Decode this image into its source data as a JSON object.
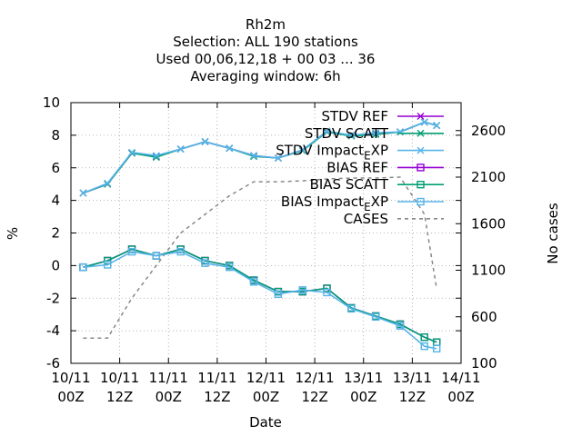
{
  "chart_data": {
    "type": "line",
    "title_lines": [
      "Rh2m",
      "Selection: ALL    190 stations",
      "Used  00,06,12,18 + 00 03 ... 36",
      "Averaging window:  6h"
    ],
    "xlabel": "Date",
    "ylabel": "%",
    "y2label": "No cases",
    "ylim": [
      -6,
      10
    ],
    "yticks": [
      "-6",
      "-4",
      "-2",
      "0",
      "2",
      "4",
      "6",
      "8",
      "10"
    ],
    "y2lim": [
      100,
      2900
    ],
    "y2ticks": [
      "100",
      "600",
      "1100",
      "1600",
      "2100",
      "2600"
    ],
    "xlim": [
      0,
      96
    ],
    "xticks": [
      {
        "l1": "10/11",
        "l2": "00Z"
      },
      {
        "l1": "10/11",
        "l2": "12Z"
      },
      {
        "l1": "11/11",
        "l2": "00Z"
      },
      {
        "l1": "11/11",
        "l2": "12Z"
      },
      {
        "l1": "12/11",
        "l2": "00Z"
      },
      {
        "l1": "12/11",
        "l2": "12Z"
      },
      {
        "l1": "13/11",
        "l2": "00Z"
      },
      {
        "l1": "13/11",
        "l2": "12Z"
      },
      {
        "l1": "14/11",
        "l2": "00Z"
      }
    ],
    "grid": true,
    "legend_position": "top-right",
    "x": [
      3,
      9,
      15,
      21,
      27,
      33,
      39,
      45,
      51,
      57,
      63,
      69,
      75,
      81,
      87,
      90
    ],
    "series": [
      {
        "name": "STDV REF",
        "color": "#9400d3",
        "marker": "x",
        "dash": false,
        "axis": "y",
        "values": [
          4.45,
          5.0,
          6.9,
          6.7,
          7.15,
          7.6,
          7.2,
          6.75,
          6.6,
          7.1,
          8.2,
          8.0,
          8.1,
          8.2,
          8.8,
          8.6
        ]
      },
      {
        "name": "STDV SCATT",
        "color": "#009e73",
        "marker": "x",
        "dash": false,
        "axis": "y",
        "values": [
          4.45,
          5.0,
          6.9,
          6.65,
          7.15,
          7.6,
          7.2,
          6.7,
          6.6,
          7.05,
          8.2,
          7.95,
          8.05,
          8.2,
          8.8,
          8.6
        ]
      },
      {
        "name": "STDV Impact_EXP",
        "color": "#56b4e9",
        "marker": "x",
        "dash": false,
        "axis": "y",
        "values": [
          4.45,
          5.05,
          6.95,
          6.75,
          7.15,
          7.6,
          7.2,
          6.75,
          6.6,
          7.1,
          8.25,
          8.0,
          8.15,
          8.2,
          8.8,
          8.6
        ]
      },
      {
        "name": "BIAS REF",
        "color": "#9400d3",
        "marker": "square",
        "dash": false,
        "axis": "y",
        "values": [
          -0.1,
          0.3,
          1.0,
          0.6,
          1.0,
          0.3,
          0.0,
          -0.9,
          -1.6,
          -1.6,
          -1.4,
          -2.6,
          -3.1,
          -3.6,
          -4.4,
          -4.7
        ]
      },
      {
        "name": "BIAS SCATT",
        "color": "#009e73",
        "marker": "square",
        "dash": false,
        "axis": "y",
        "values": [
          -0.1,
          0.3,
          1.0,
          0.6,
          1.0,
          0.3,
          0.0,
          -0.9,
          -1.6,
          -1.6,
          -1.4,
          -2.6,
          -3.1,
          -3.6,
          -4.4,
          -4.7
        ]
      },
      {
        "name": "BIAS Impact_EXP",
        "color": "#56b4e9",
        "marker": "square",
        "dash": false,
        "axis": "y",
        "values": [
          -0.1,
          0.05,
          0.85,
          0.6,
          0.85,
          0.15,
          -0.1,
          -1.0,
          -1.75,
          -1.5,
          -1.65,
          -2.65,
          -3.15,
          -3.7,
          -4.95,
          -5.1
        ]
      },
      {
        "name": "CASES",
        "color": "#888888",
        "marker": "none",
        "dash": true,
        "axis": "y2",
        "values": [
          370,
          370,
          800,
          1150,
          1500,
          1700,
          1900,
          2050,
          2050,
          2060,
          2080,
          2090,
          2090,
          2100,
          1700,
          900
        ]
      }
    ]
  }
}
